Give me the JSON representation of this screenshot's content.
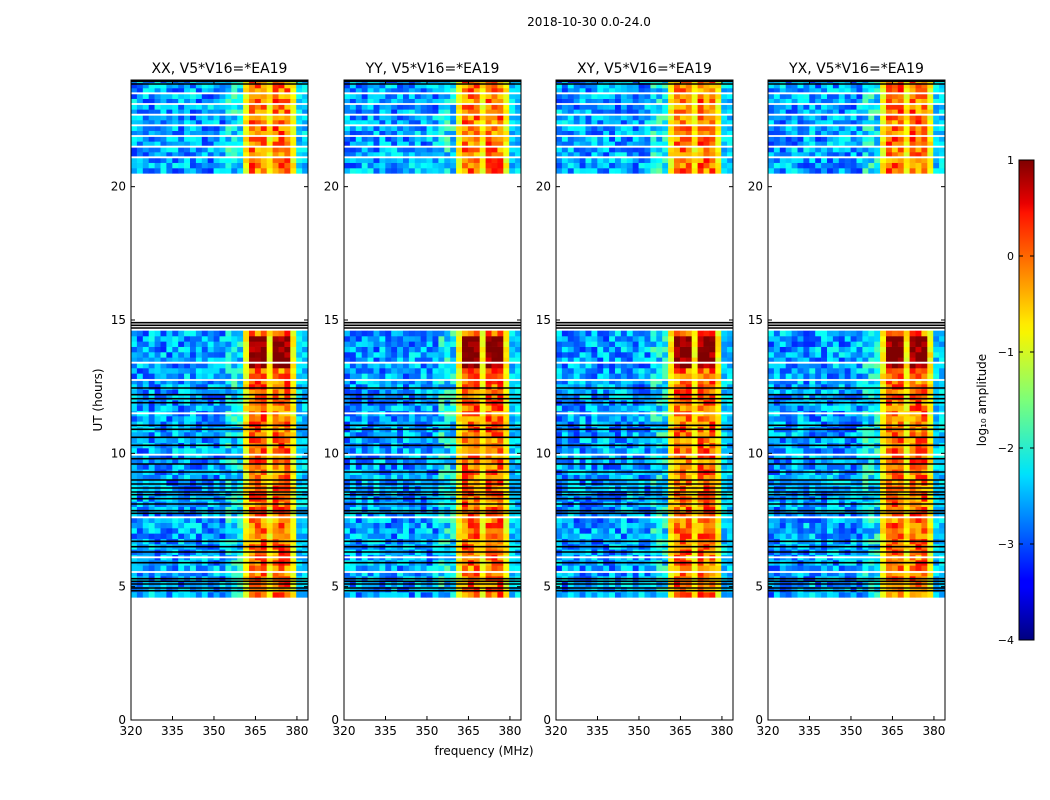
{
  "suptitle": "2018-10-30 0.0-24.0",
  "chart_data": {
    "type": "heatmap",
    "xlabel": "frequency (MHz)",
    "ylabel": "UT (hours)",
    "xlim": [
      320,
      384
    ],
    "ylim": [
      0,
      24
    ],
    "xticks": [
      320,
      335,
      350,
      365,
      380
    ],
    "yticks": [
      0,
      5,
      10,
      15,
      20
    ],
    "panels": [
      {
        "title": "XX, V5*V16=*EA19",
        "rfi_band_mhz": [
          360,
          380
        ]
      },
      {
        "title": "YY, V5*V16=*EA19",
        "rfi_band_mhz": [
          360,
          380
        ]
      },
      {
        "title": "XY, V5*V16=*EA19",
        "rfi_band_mhz": [
          360,
          380
        ]
      },
      {
        "title": "YX, V5*V16=*EA19",
        "rfi_band_mhz": [
          360,
          380
        ]
      }
    ],
    "data_segments_ut": [
      [
        4.6,
        14.6
      ],
      [
        20.5,
        24.0
      ]
    ],
    "colorbar": {
      "label": "log₁₀ amplitude",
      "range": [
        -4,
        1
      ],
      "ticks": [
        {
          "value": 1,
          "label": "1"
        },
        {
          "value": 0,
          "label": "0"
        },
        {
          "value": -1,
          "label": "−1"
        },
        {
          "value": -2,
          "label": "−2"
        },
        {
          "value": -3,
          "label": "−3"
        },
        {
          "value": -4,
          "label": "−4"
        }
      ]
    }
  }
}
